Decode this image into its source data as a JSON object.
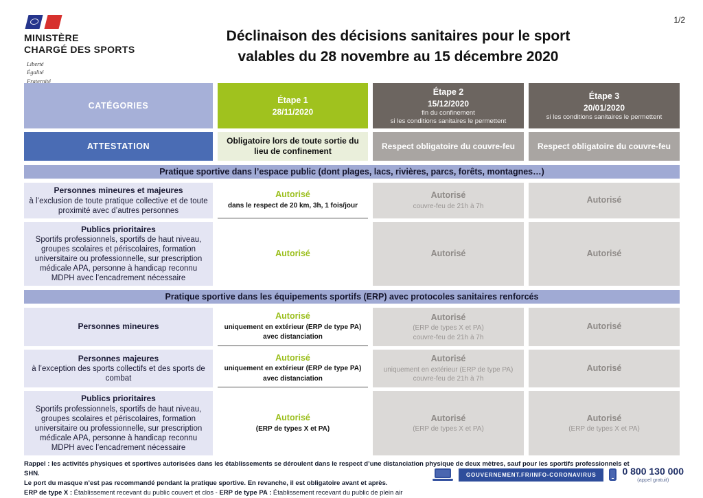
{
  "page": {
    "number": "1/2"
  },
  "logo": {
    "ministry_line1": "MINISTÈRE",
    "ministry_line2": "CHARGÉ DES SPORTS",
    "motto_line1": "Liberté",
    "motto_line2": "Égalité",
    "motto_line3": "Fraternité"
  },
  "title": {
    "line1": "Déclinaison des décisions sanitaires pour le sport",
    "line2": "valables du 28 novembre au 15 décembre 2020"
  },
  "colors": {
    "accent_green": "#a0c21e",
    "periwinkle": "#a6b0d8",
    "attestation_blue": "#4a6cb4",
    "etape_taupe": "#6c6560",
    "grey_cell": "#dbd9d7",
    "couvre_feu_grey": "#a9a5a2",
    "pale_green_cell": "#eaefdb",
    "gov_blue": "#2e4d9b"
  },
  "table": {
    "header": {
      "categories": "CATÉGORIES",
      "etape1_title": "Étape 1",
      "etape1_date": "28/11/2020",
      "etape2_title": "Étape 2",
      "etape2_date": "15/12/2020",
      "etape2_note1": "fin du confinement",
      "etape2_note2": "si les conditions sanitaires le permettent",
      "etape3_title": "Étape 3",
      "etape3_date": "20/01/2020",
      "etape3_note1": "si les conditions sanitaires le permettent"
    },
    "attestation": {
      "label": "ATTESTATION",
      "etape1": "Obligatoire lors de toute sortie du lieu de confinement",
      "etape2": "Respect obligatoire du couvre-feu",
      "etape3": "Respect obligatoire du couvre-feu"
    },
    "sections": [
      {
        "banner": "Pratique sportive dans l’espace public (dont plages, lacs, rivières, parcs, forêts, montagnes…)",
        "rows": [
          {
            "category_title": "Personnes mineures et majeures",
            "category_sub": "à l’exclusion de toute pratique collective et de toute proximité avec d’autres personnes",
            "e1_status": "Autorisé",
            "e1_detail1": "dans le respect de 20 km, 3h, 1 fois/jour",
            "e2_status": "Autorisé",
            "e2_detail1": "couvre-feu de 21h à 7h",
            "e3_status": "Autorisé"
          },
          {
            "category_title": "Publics prioritaires",
            "category_sub": "Sportifs professionnels, sportifs de haut niveau, groupes scolaires et périscolaires, formation universitaire ou professionnelle, sur prescription médicale APA, personne à handicap reconnu MDPH avec l’encadrement nécessaire",
            "e1_status": "Autorisé",
            "e2_status": "Autorisé",
            "e3_status": "Autorisé"
          }
        ]
      },
      {
        "banner": "Pratique sportive dans les équipements sportifs (ERP) avec protocoles sanitaires renforcés",
        "rows": [
          {
            "category_title": "Personnes mineures",
            "e1_status": "Autorisé",
            "e1_detail1": "uniquement en extérieur (ERP de type PA)",
            "e1_detail2": "avec distanciation",
            "e2_status": "Autorisé",
            "e2_detail1": "(ERP de types X et PA)",
            "e2_detail2": "couvre-feu de 21h à 7h",
            "e3_status": "Autorisé"
          },
          {
            "category_title": "Personnes majeures",
            "category_sub": "à l’exception des sports collectifs et des sports de combat",
            "e1_status": "Autorisé",
            "e1_detail1": "uniquement en extérieur (ERP de type PA)",
            "e1_detail2": "avec distanciation",
            "e2_status": "Autorisé",
            "e2_detail1": "uniquement en extérieur (ERP de type PA)",
            "e2_detail2": "couvre-feu de 21h à 7h",
            "e3_status": "Autorisé"
          },
          {
            "category_title": "Publics prioritaires",
            "category_sub": "Sportifs professionnels, sportifs de haut niveau, groupes scolaires et périscolaires, formation universitaire ou professionnelle, sur prescription médicale APA, personne à handicap reconnu MDPH avec l’encadrement nécessaire",
            "e1_status": "Autorisé",
            "e1_detail1": "(ERP de types X et PA)",
            "e2_status": "Autorisé",
            "e2_detail1": "(ERP de types X et PA)",
            "e3_status": "Autorisé",
            "e3_detail1": "(ERP de types X et PA)"
          }
        ]
      }
    ]
  },
  "footnotes": {
    "line1": "Rappel : les activités physiques et sportives autorisées dans les établissements se déroulent dans le respect d’une distanciation physique de deux mètres, sauf pour les sportifs professionnels et SHN.",
    "line2": "Le port du masque n’est pas recommandé pendant la pratique sportive. En revanche, il est obligatoire avant et après.",
    "line3_bold1": "ERP de type X :",
    "line3_text1": " Établissement recevant du public couvert et clos - ",
    "line3_bold2": "ERP de type PA :",
    "line3_text2": " Établissement recevant du public de plein air"
  },
  "gov": {
    "banner": "GOUVERNEMENT.FR/INFO-CORONAVIRUS",
    "phone": "0 800 130 000",
    "phone_note": "(appel gratuit)"
  }
}
